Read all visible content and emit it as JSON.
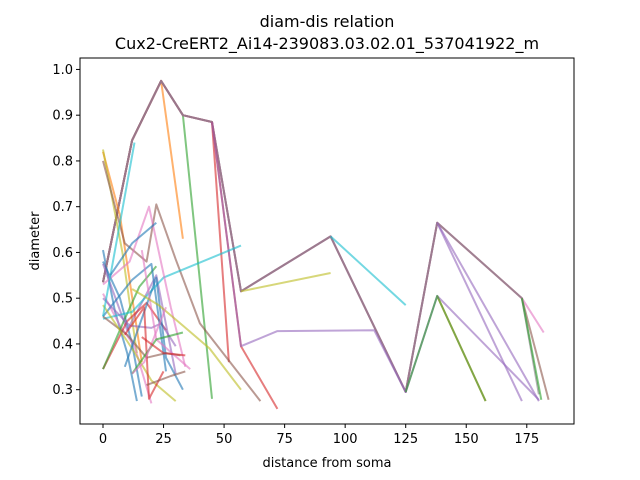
{
  "chart_data": {
    "type": "line",
    "title": "diam-dis relation",
    "subtitle": "Cux2-CreERT2_Ai14-239083.03.02.01_537041922_m",
    "xlabel": "distance from soma",
    "ylabel": "diameter",
    "xlim": [
      -9.5,
      194.5
    ],
    "ylim": [
      0.225,
      1.025
    ],
    "xticks": [
      0,
      25,
      50,
      75,
      100,
      125,
      150,
      175
    ],
    "yticks": [
      0.3,
      0.4,
      0.5,
      0.6,
      0.7,
      0.8,
      0.9,
      1.0
    ],
    "grid": false,
    "line_alpha": 0.6,
    "series": [
      {
        "color": "#1f77b4",
        "x": [
          0,
          5,
          10,
          14
        ],
        "y": [
          0.605,
          0.47,
          0.38,
          0.275
        ]
      },
      {
        "color": "#ff7f0e",
        "x": [
          0,
          12,
          24,
          33
        ],
        "y": [
          0.535,
          0.845,
          0.975,
          0.63
        ]
      },
      {
        "color": "#2ca02c",
        "x": [
          0,
          12,
          24,
          33,
          45
        ],
        "y": [
          0.535,
          0.845,
          0.975,
          0.9,
          0.28
        ]
      },
      {
        "color": "#d62728",
        "x": [
          0,
          12,
          24,
          33,
          45,
          52
        ],
        "y": [
          0.535,
          0.845,
          0.975,
          0.9,
          0.885,
          0.36
        ]
      },
      {
        "color": "#9467bd",
        "x": [
          0,
          12,
          24,
          33,
          45,
          57,
          94,
          125,
          138,
          180
        ],
        "y": [
          0.535,
          0.845,
          0.975,
          0.9,
          0.885,
          0.515,
          0.635,
          0.295,
          0.665,
          0.275
        ]
      },
      {
        "color": "#8c564b",
        "x": [
          0,
          12,
          24,
          33,
          45,
          57,
          94,
          125,
          138,
          173,
          184
        ],
        "y": [
          0.535,
          0.845,
          0.975,
          0.9,
          0.885,
          0.515,
          0.635,
          0.295,
          0.665,
          0.5,
          0.278
        ]
      },
      {
        "color": "#e377c2",
        "x": [
          0,
          12,
          24,
          33,
          45,
          57,
          94,
          125,
          138,
          173,
          182
        ],
        "y": [
          0.535,
          0.845,
          0.975,
          0.9,
          0.885,
          0.515,
          0.635,
          0.295,
          0.665,
          0.5,
          0.425
        ]
      },
      {
        "color": "#7f7f7f",
        "x": [
          0,
          12,
          24,
          33,
          45,
          57,
          94,
          125,
          138,
          173,
          180
        ],
        "y": [
          0.535,
          0.845,
          0.975,
          0.9,
          0.885,
          0.515,
          0.635,
          0.295,
          0.665,
          0.5,
          0.29
        ]
      },
      {
        "color": "#bcbd22",
        "x": [
          57,
          94
        ],
        "y": [
          0.515,
          0.555
        ]
      },
      {
        "color": "#17becf",
        "x": [
          94,
          125
        ],
        "y": [
          0.635,
          0.485
        ]
      },
      {
        "color": "#2ca02c",
        "x": [
          173,
          181
        ],
        "y": [
          0.5,
          0.278
        ]
      },
      {
        "color": "#9467bd",
        "x": [
          138,
          173
        ],
        "y": [
          0.665,
          0.275
        ]
      },
      {
        "color": "#ff7f0e",
        "x": [
          138,
          158
        ],
        "y": [
          0.505,
          0.275
        ]
      },
      {
        "color": "#d62728",
        "x": [
          45,
          57,
          72
        ],
        "y": [
          0.885,
          0.395,
          0.258
        ]
      },
      {
        "color": "#9467bd",
        "x": [
          45,
          57,
          72,
          112,
          125,
          138,
          180
        ],
        "y": [
          0.885,
          0.395,
          0.428,
          0.43,
          0.295,
          0.505,
          0.278
        ]
      },
      {
        "color": "#2ca02c",
        "x": [
          125,
          138,
          158
        ],
        "y": [
          0.295,
          0.505,
          0.275
        ]
      },
      {
        "color": "#ff7f0e",
        "x": [
          0,
          7,
          16
        ],
        "y": [
          0.82,
          0.68,
          0.36
        ]
      },
      {
        "color": "#bcbd22",
        "x": [
          0,
          8,
          14
        ],
        "y": [
          0.825,
          0.6,
          0.38
        ]
      },
      {
        "color": "#8c564b",
        "x": [
          0,
          9,
          18,
          22,
          30,
          40,
          65
        ],
        "y": [
          0.8,
          0.62,
          0.58,
          0.705,
          0.585,
          0.445,
          0.275
        ]
      },
      {
        "color": "#1f77b4",
        "x": [
          0,
          7,
          12,
          16
        ],
        "y": [
          0.58,
          0.5,
          0.4,
          0.285
        ]
      },
      {
        "color": "#e377c2",
        "x": [
          0,
          7,
          13,
          20
        ],
        "y": [
          0.51,
          0.44,
          0.395,
          0.27
        ]
      },
      {
        "color": "#9467bd",
        "x": [
          0,
          10,
          22,
          30
        ],
        "y": [
          0.575,
          0.43,
          0.55,
          0.335
        ]
      },
      {
        "color": "#d62728",
        "x": [
          0,
          10,
          18,
          26
        ],
        "y": [
          0.345,
          0.45,
          0.49,
          0.43
        ]
      },
      {
        "color": "#2ca02c",
        "x": [
          0,
          9,
          15,
          22
        ],
        "y": [
          0.345,
          0.455,
          0.525,
          0.57
        ]
      },
      {
        "color": "#1f77b4",
        "x": [
          0,
          12,
          20,
          26
        ],
        "y": [
          0.46,
          0.54,
          0.575,
          0.34
        ]
      },
      {
        "color": "#17becf",
        "x": [
          0,
          12,
          25,
          57
        ],
        "y": [
          0.455,
          0.47,
          0.545,
          0.615
        ]
      },
      {
        "color": "#8c564b",
        "x": [
          0,
          10,
          18,
          26,
          32
        ],
        "y": [
          0.46,
          0.42,
          0.37,
          0.38,
          0.375
        ]
      },
      {
        "color": "#e377c2",
        "x": [
          0,
          11,
          19,
          28,
          34
        ],
        "y": [
          0.53,
          0.58,
          0.7,
          0.48,
          0.35
        ]
      },
      {
        "color": "#bcbd22",
        "x": [
          0,
          12,
          20,
          30
        ],
        "y": [
          0.485,
          0.39,
          0.32,
          0.275
        ]
      },
      {
        "color": "#9467bd",
        "x": [
          0,
          11,
          20,
          24,
          30
        ],
        "y": [
          0.5,
          0.44,
          0.435,
          0.445,
          0.395
        ]
      },
      {
        "color": "#17becf",
        "x": [
          0,
          13
        ],
        "y": [
          0.46,
          0.84
        ]
      },
      {
        "color": "#1f77b4",
        "x": [
          9,
          22,
          26,
          33
        ],
        "y": [
          0.35,
          0.545,
          0.37,
          0.3
        ]
      },
      {
        "color": "#d62728",
        "x": [
          9,
          17,
          19,
          25
        ],
        "y": [
          0.42,
          0.48,
          0.28,
          0.34
        ]
      },
      {
        "color": "#e377c2",
        "x": [
          16,
          22,
          36
        ],
        "y": [
          0.605,
          0.41,
          0.345
        ]
      },
      {
        "color": "#2ca02c",
        "x": [
          12,
          22,
          33
        ],
        "y": [
          0.335,
          0.41,
          0.425
        ]
      },
      {
        "color": "#bcbd22",
        "x": [
          12,
          23,
          33,
          44,
          57
        ],
        "y": [
          0.52,
          0.485,
          0.44,
          0.39,
          0.3
        ]
      },
      {
        "color": "#1f77b4",
        "x": [
          3,
          12,
          22
        ],
        "y": [
          0.55,
          0.62,
          0.665
        ]
      },
      {
        "color": "#e377c2",
        "x": [
          12,
          17,
          26
        ],
        "y": [
          0.335,
          0.36,
          0.48
        ]
      },
      {
        "color": "#d62728",
        "x": [
          16,
          25,
          34
        ],
        "y": [
          0.415,
          0.38,
          0.375
        ]
      },
      {
        "color": "#8c564b",
        "x": [
          18,
          28,
          34
        ],
        "y": [
          0.31,
          0.33,
          0.34
        ]
      }
    ]
  }
}
